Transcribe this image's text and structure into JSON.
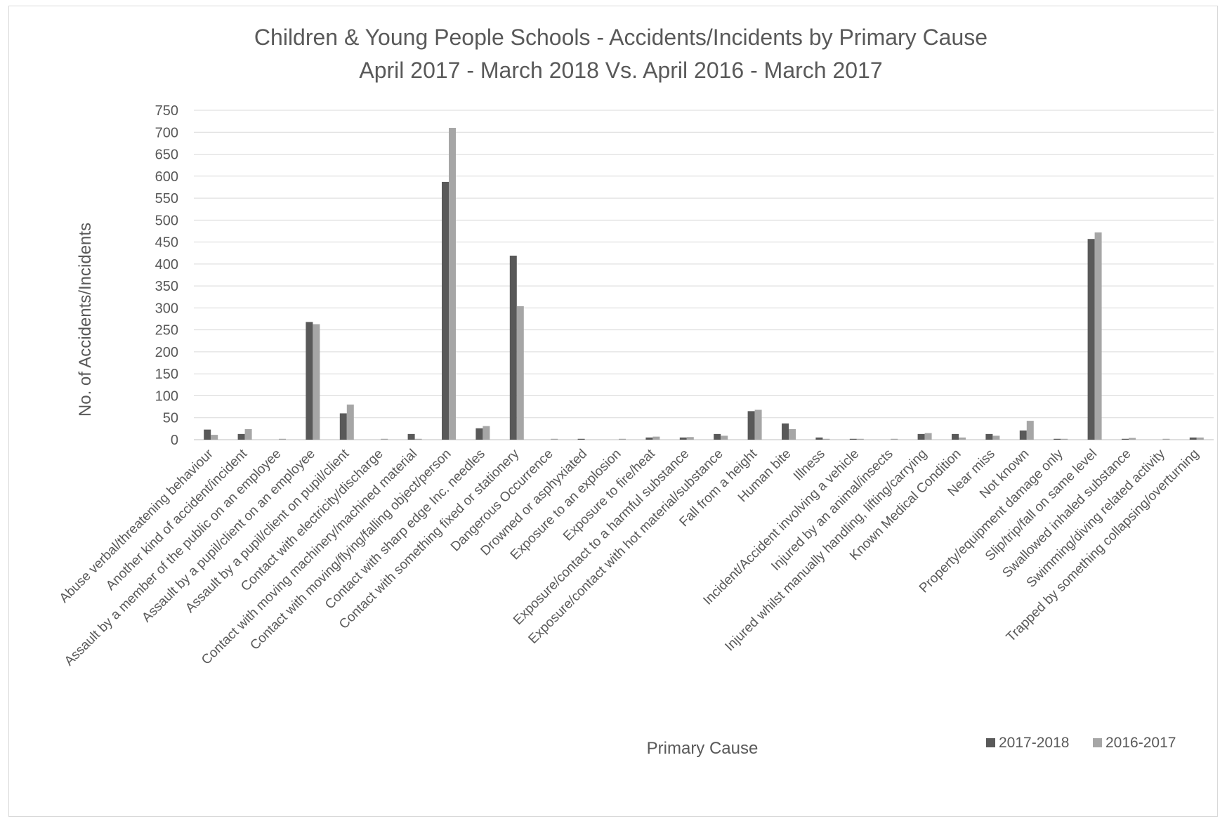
{
  "chart_data": {
    "type": "bar",
    "title": "Children & Young People Schools - Accidents/Incidents by Primary Cause",
    "subtitle": "April 2017 - March 2018 Vs. April 2016 - March 2017",
    "xlabel": "Primary Cause",
    "ylabel": "No. of Accidents/Incidents",
    "ylim": [
      0,
      750
    ],
    "yticks": [
      0,
      50,
      100,
      150,
      200,
      250,
      300,
      350,
      400,
      450,
      500,
      550,
      600,
      650,
      700,
      750
    ],
    "grid": true,
    "legend_position": "bottom-right",
    "categories": [
      "Abuse verbal/threatening behaviour",
      "Another kind of accident/incident",
      "Assault by a member of the public on an employee",
      "Assault by a pupil/client on an employee",
      "Assault by a pupil/client on pupil/client",
      "Contact with electricity/discharge",
      "Contact with moving machinery/machined material",
      "Contact with moving/flying/falling object/person",
      "Contact with sharp edge Inc. needles",
      "Contact with something fixed or stationery",
      "Dangerous Occurrence",
      "Drowned or asphyxiated",
      "Exposure to an explosion",
      "Exposure to fire/heat",
      "Exposure/contact to a harmful substance",
      "Exposure/contact with hot material/substance",
      "Fall from a height",
      "Human bite",
      "Illness",
      "Incident/Accident involving a vehicle",
      "Injured by an animal/insects",
      "Injured whilst manually handling, lifting/carrying",
      "Known Medical Condition",
      "Near miss",
      "Not known",
      "Property/equipment damage only",
      "Slip/trip/fall on same level",
      "Swallowed inhaled substance",
      "Swimming/diving related activity",
      "Trapped by something collapsing/overturning"
    ],
    "series": [
      {
        "name": "2017-2018",
        "color": "#595959",
        "values": [
          23,
          13,
          0,
          268,
          60,
          0,
          13,
          587,
          26,
          419,
          0,
          2,
          0,
          5,
          5,
          13,
          65,
          37,
          5,
          2,
          0,
          13,
          13,
          13,
          21,
          2,
          457,
          2,
          0,
          5
        ]
      },
      {
        "name": "2016-2017",
        "color": "#a6a6a6",
        "values": [
          11,
          24,
          2,
          263,
          80,
          2,
          2,
          710,
          31,
          304,
          2,
          0,
          2,
          7,
          6,
          9,
          68,
          24,
          2,
          2,
          2,
          15,
          5,
          9,
          43,
          2,
          472,
          4,
          2,
          5
        ]
      }
    ]
  }
}
